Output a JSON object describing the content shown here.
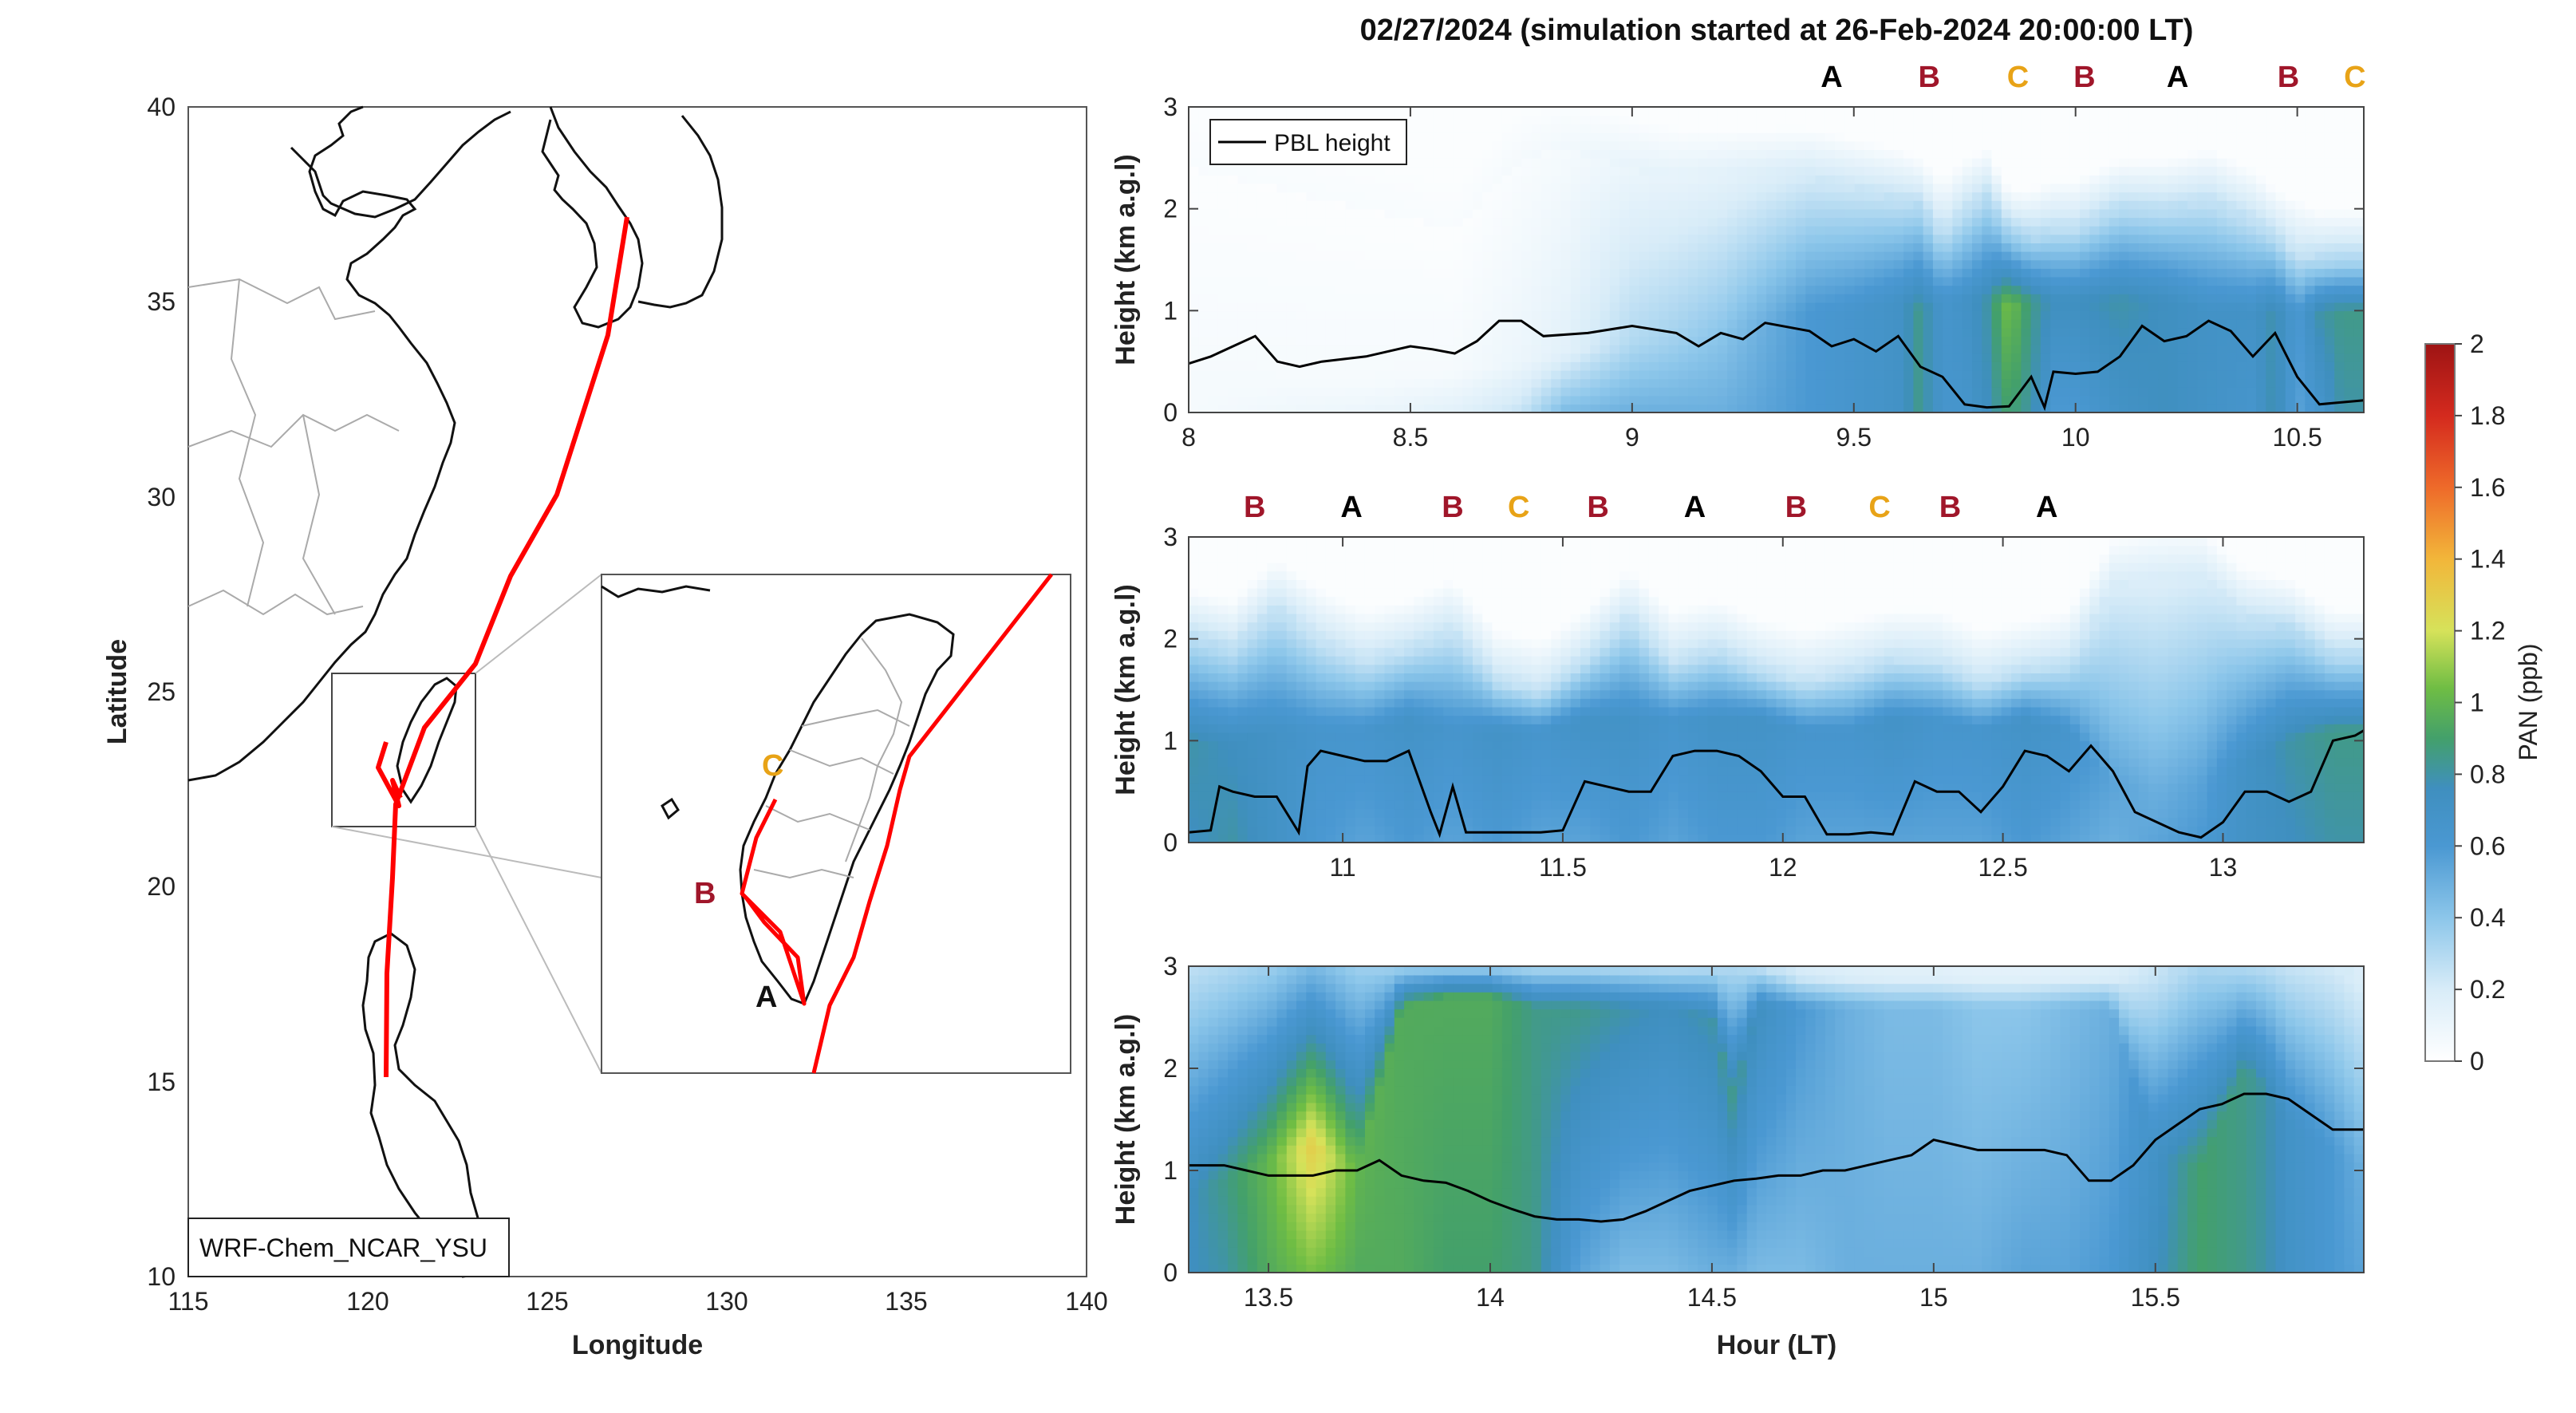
{
  "title": "02/27/2024 (simulation started at 26-Feb-2024 20:00:00 LT)",
  "map": {
    "model_label": "WRF-Chem_NCAR_YSU",
    "xlabel": "Longitude",
    "ylabel": "Latitude",
    "xticks": [
      "115",
      "120",
      "125",
      "130",
      "135",
      "140"
    ],
    "yticks": [
      "40",
      "35",
      "30",
      "25",
      "20",
      "15",
      "10"
    ],
    "inset_labels": [
      "C",
      "B",
      "A"
    ]
  },
  "colorbar": {
    "label": "PAN (ppb)",
    "ticks": [
      "2",
      "1.8",
      "1.6",
      "1.4",
      "1.2",
      "1",
      "0.8",
      "0.6",
      "0.4",
      "0.2",
      "0"
    ]
  },
  "colors": {
    "A": "#000000",
    "B": "#a0162a",
    "C": "#e8a317",
    "flight_track": "#ff0000",
    "pbl_line": "#000000"
  },
  "chart_data": [
    {
      "type": "heatmap",
      "panel": "top",
      "ylabel": "Height (km a.g.l)",
      "xlabel": "",
      "xlim": [
        8,
        10.65
      ],
      "ylim": [
        0,
        3
      ],
      "xticks": [
        "8",
        "8.5",
        "9",
        "9.5",
        "10",
        "10.5"
      ],
      "yticks": [
        "3",
        "2",
        "1",
        "0"
      ],
      "legend": "PBL height",
      "site_labels": [
        {
          "label": "A",
          "hour": 9.45
        },
        {
          "label": "B",
          "hour": 9.67
        },
        {
          "label": "C",
          "hour": 9.87
        },
        {
          "label": "B",
          "hour": 10.02
        },
        {
          "label": "A",
          "hour": 10.23
        },
        {
          "label": "B",
          "hour": 10.48
        },
        {
          "label": "C",
          "hour": 10.63
        }
      ],
      "pbl_height_km": {
        "hours": [
          8.0,
          8.05,
          8.1,
          8.15,
          8.2,
          8.25,
          8.3,
          8.4,
          8.5,
          8.55,
          8.6,
          8.65,
          8.7,
          8.75,
          8.8,
          8.9,
          9.0,
          9.1,
          9.15,
          9.2,
          9.25,
          9.3,
          9.4,
          9.45,
          9.5,
          9.55,
          9.6,
          9.65,
          9.7,
          9.75,
          9.8,
          9.85,
          9.9,
          9.93,
          9.95,
          10.0,
          10.05,
          10.1,
          10.15,
          10.2,
          10.25,
          10.3,
          10.35,
          10.4,
          10.45,
          10.5,
          10.55,
          10.6,
          10.65
        ],
        "values": [
          0.48,
          0.55,
          0.65,
          0.75,
          0.5,
          0.45,
          0.5,
          0.55,
          0.65,
          0.62,
          0.58,
          0.7,
          0.9,
          0.9,
          0.75,
          0.78,
          0.85,
          0.78,
          0.65,
          0.78,
          0.72,
          0.88,
          0.8,
          0.65,
          0.72,
          0.6,
          0.75,
          0.45,
          0.35,
          0.08,
          0.05,
          0.06,
          0.35,
          0.05,
          0.4,
          0.38,
          0.4,
          0.55,
          0.85,
          0.7,
          0.75,
          0.9,
          0.8,
          0.55,
          0.78,
          0.35,
          0.08,
          0.1,
          0.12
        ]
      },
      "pan_columns": {
        "hours": [
          8.0,
          8.2,
          8.4,
          8.6,
          8.75,
          8.85,
          9.0,
          9.1,
          9.2,
          9.3,
          9.4,
          9.5,
          9.6,
          9.65,
          9.7,
          9.75,
          9.8,
          9.85,
          9.9,
          9.95,
          10.0,
          10.1,
          10.2,
          10.3,
          10.4,
          10.45,
          10.5,
          10.55,
          10.6
        ],
        "surface_ppb": [
          0.05,
          0.08,
          0.1,
          0.15,
          0.25,
          0.45,
          0.5,
          0.5,
          0.5,
          0.55,
          0.6,
          0.65,
          0.7,
          0.85,
          0.65,
          0.65,
          0.75,
          0.9,
          0.8,
          0.6,
          0.6,
          0.7,
          0.75,
          0.7,
          0.65,
          0.8,
          0.55,
          0.65,
          0.8
        ],
        "layer_top_km": [
          2.4,
          2.2,
          2.0,
          1.8,
          2.5,
          2.6,
          2.4,
          2.3,
          2.3,
          2.3,
          2.3,
          2.2,
          2.1,
          2.0,
          1.8,
          2.0,
          2.1,
          1.7,
          1.7,
          1.8,
          1.8,
          2.0,
          2.0,
          2.1,
          1.9,
          1.7,
          1.6,
          1.5,
          1.5
        ],
        "peak_ppb": [
          0.05,
          0.05,
          0.05,
          0.05,
          0.1,
          0.15,
          0.3,
          0.35,
          0.4,
          0.5,
          0.6,
          0.65,
          0.7,
          0.85,
          0.65,
          0.7,
          0.8,
          1.05,
          0.85,
          0.75,
          0.75,
          0.8,
          0.75,
          0.7,
          0.7,
          0.8,
          0.6,
          0.8,
          0.85
        ],
        "peak_height_km": [
          0.3,
          0.3,
          0.3,
          0.4,
          0.5,
          0.6,
          0.7,
          0.7,
          0.8,
          0.9,
          1.0,
          1.0,
          1.1,
          1.0,
          1.1,
          1.1,
          1.1,
          1.05,
          1.1,
          1.1,
          1.1,
          1.1,
          1.1,
          1.0,
          1.0,
          1.0,
          1.0,
          1.0,
          1.0
        ]
      }
    },
    {
      "type": "heatmap",
      "panel": "middle",
      "ylabel": "Height (km a.g.l)",
      "xlabel": "",
      "xlim": [
        10.65,
        13.32
      ],
      "ylim": [
        0,
        3
      ],
      "xticks": [
        "11",
        "11.5",
        "12",
        "12.5",
        "13"
      ],
      "yticks": [
        "3",
        "2",
        "1",
        "0"
      ],
      "site_labels": [
        {
          "label": "B",
          "hour": 10.8
        },
        {
          "label": "A",
          "hour": 11.02
        },
        {
          "label": "B",
          "hour": 11.25
        },
        {
          "label": "C",
          "hour": 11.4
        },
        {
          "label": "B",
          "hour": 11.58
        },
        {
          "label": "A",
          "hour": 11.8
        },
        {
          "label": "B",
          "hour": 12.03
        },
        {
          "label": "C",
          "hour": 12.22
        },
        {
          "label": "B",
          "hour": 12.38
        },
        {
          "label": "A",
          "hour": 12.6
        }
      ],
      "pbl_height_km": {
        "hours": [
          10.65,
          10.7,
          10.72,
          10.75,
          10.8,
          10.85,
          10.9,
          10.92,
          10.95,
          11.0,
          11.05,
          11.1,
          11.15,
          11.2,
          11.22,
          11.25,
          11.28,
          11.3,
          11.35,
          11.45,
          11.5,
          11.55,
          11.6,
          11.65,
          11.7,
          11.75,
          11.8,
          11.85,
          11.9,
          11.95,
          12.0,
          12.05,
          12.1,
          12.15,
          12.2,
          12.25,
          12.3,
          12.35,
          12.4,
          12.45,
          12.5,
          12.55,
          12.6,
          12.65,
          12.7,
          12.75,
          12.8,
          12.85,
          12.9,
          12.95,
          13.0,
          13.05,
          13.1,
          13.15,
          13.2,
          13.25,
          13.3,
          13.32
        ],
        "values": [
          0.1,
          0.12,
          0.55,
          0.5,
          0.45,
          0.45,
          0.1,
          0.75,
          0.9,
          0.85,
          0.8,
          0.8,
          0.9,
          0.3,
          0.08,
          0.55,
          0.1,
          0.1,
          0.1,
          0.1,
          0.12,
          0.6,
          0.55,
          0.5,
          0.5,
          0.85,
          0.9,
          0.9,
          0.85,
          0.7,
          0.45,
          0.45,
          0.08,
          0.08,
          0.1,
          0.08,
          0.6,
          0.5,
          0.5,
          0.3,
          0.55,
          0.9,
          0.85,
          0.7,
          0.95,
          0.7,
          0.3,
          0.2,
          0.1,
          0.05,
          0.2,
          0.5,
          0.5,
          0.4,
          0.5,
          1.0,
          1.05,
          1.1
        ]
      },
      "pan_columns": {
        "hours": [
          10.65,
          10.75,
          10.85,
          10.95,
          11.05,
          11.15,
          11.25,
          11.35,
          11.45,
          11.55,
          11.65,
          11.75,
          11.85,
          11.95,
          12.05,
          12.15,
          12.25,
          12.35,
          12.45,
          12.55,
          12.65,
          12.75,
          12.85,
          12.95,
          13.05,
          13.15,
          13.25,
          13.32
        ],
        "surface_ppb": [
          0.75,
          0.8,
          0.7,
          0.6,
          0.55,
          0.6,
          0.55,
          0.6,
          0.55,
          0.55,
          0.6,
          0.55,
          0.6,
          0.6,
          0.55,
          0.55,
          0.55,
          0.55,
          0.55,
          0.6,
          0.55,
          0.5,
          0.55,
          0.6,
          0.7,
          0.75,
          0.8,
          0.8
        ],
        "layer_top_km": [
          2.0,
          1.9,
          2.3,
          2.0,
          1.8,
          1.9,
          2.1,
          1.6,
          1.5,
          1.8,
          2.2,
          1.8,
          1.9,
          1.7,
          1.6,
          1.7,
          1.8,
          1.8,
          1.6,
          1.7,
          1.8,
          2.5,
          2.6,
          2.6,
          2.2,
          2.1,
          1.8,
          1.8
        ],
        "peak_ppb": [
          0.8,
          0.75,
          0.7,
          0.65,
          0.65,
          0.7,
          0.65,
          0.7,
          0.65,
          0.7,
          0.7,
          0.65,
          0.7,
          0.7,
          0.65,
          0.65,
          0.7,
          0.65,
          0.65,
          0.7,
          0.65,
          0.55,
          0.5,
          0.55,
          0.7,
          0.8,
          0.85,
          0.85
        ],
        "peak_height_km": [
          1.0,
          1.0,
          1.1,
          1.1,
          1.1,
          1.2,
          1.1,
          1.1,
          1.1,
          1.2,
          1.2,
          1.2,
          1.2,
          1.2,
          1.1,
          1.1,
          1.2,
          1.2,
          1.1,
          1.2,
          1.1,
          0.6,
          0.5,
          0.6,
          0.8,
          1.0,
          1.1,
          1.1
        ]
      }
    },
    {
      "type": "heatmap",
      "panel": "bottom",
      "ylabel": "Height (km a.g.l)",
      "xlabel": "Hour (LT)",
      "xlim": [
        13.32,
        15.97
      ],
      "ylim": [
        0,
        3
      ],
      "xticks": [
        "13.5",
        "14",
        "14.5",
        "15",
        "15.5"
      ],
      "yticks": [
        "3",
        "2",
        "1",
        "0"
      ],
      "pbl_height_km": {
        "hours": [
          13.32,
          13.4,
          13.45,
          13.5,
          13.55,
          13.6,
          13.65,
          13.7,
          13.75,
          13.8,
          13.85,
          13.9,
          13.95,
          14.0,
          14.05,
          14.1,
          14.15,
          14.2,
          14.25,
          14.3,
          14.35,
          14.4,
          14.45,
          14.5,
          14.55,
          14.6,
          14.65,
          14.7,
          14.75,
          14.8,
          14.85,
          14.9,
          14.95,
          15.0,
          15.05,
          15.1,
          15.15,
          15.2,
          15.25,
          15.3,
          15.35,
          15.4,
          15.45,
          15.5,
          15.55,
          15.6,
          15.65,
          15.7,
          15.75,
          15.8,
          15.85,
          15.9,
          15.97
        ],
        "values": [
          1.05,
          1.05,
          1.0,
          0.95,
          0.95,
          0.95,
          1.0,
          1.0,
          1.1,
          0.95,
          0.9,
          0.88,
          0.8,
          0.7,
          0.62,
          0.55,
          0.52,
          0.52,
          0.5,
          0.52,
          0.6,
          0.7,
          0.8,
          0.85,
          0.9,
          0.92,
          0.95,
          0.95,
          1.0,
          1.0,
          1.05,
          1.1,
          1.15,
          1.3,
          1.25,
          1.2,
          1.2,
          1.2,
          1.2,
          1.15,
          0.9,
          0.9,
          1.05,
          1.3,
          1.45,
          1.6,
          1.65,
          1.75,
          1.75,
          1.7,
          1.55,
          1.4,
          1.4
        ]
      },
      "pan_columns": {
        "hours": [
          13.32,
          13.4,
          13.5,
          13.6,
          13.7,
          13.8,
          13.9,
          14.0,
          14.1,
          14.2,
          14.3,
          14.4,
          14.5,
          14.55,
          14.6,
          14.7,
          14.8,
          14.9,
          15.0,
          15.1,
          15.2,
          15.3,
          15.4,
          15.5,
          15.6,
          15.7,
          15.75,
          15.8,
          15.9,
          15.97
        ],
        "surface_ppb": [
          0.75,
          0.8,
          0.95,
          1.05,
          0.95,
          0.95,
          0.9,
          0.9,
          0.85,
          0.55,
          0.45,
          0.45,
          0.5,
          0.5,
          0.45,
          0.45,
          0.5,
          0.5,
          0.5,
          0.5,
          0.55,
          0.55,
          0.6,
          0.75,
          0.9,
          0.85,
          0.8,
          0.7,
          0.6,
          0.55
        ],
        "layer_top_km": [
          3.0,
          3.0,
          3.0,
          3.0,
          3.0,
          3.0,
          3.0,
          3.0,
          3.0,
          3.0,
          3.0,
          3.0,
          3.0,
          3.0,
          3.0,
          2.9,
          2.9,
          2.9,
          2.9,
          2.9,
          2.9,
          2.9,
          2.9,
          2.9,
          3.0,
          3.0,
          3.0,
          3.0,
          3.0,
          2.9
        ],
        "peak_ppb": [
          0.75,
          0.85,
          1.0,
          1.3,
          1.0,
          0.95,
          0.95,
          0.95,
          0.85,
          0.85,
          0.8,
          0.75,
          0.8,
          0.85,
          0.75,
          0.6,
          0.5,
          0.45,
          0.45,
          0.4,
          0.4,
          0.45,
          0.5,
          0.7,
          0.9,
          0.85,
          0.8,
          0.7,
          0.6,
          0.5
        ],
        "peak_height_km": [
          0.8,
          0.9,
          1.1,
          1.25,
          1.0,
          2.6,
          2.7,
          2.7,
          2.6,
          2.6,
          2.6,
          2.6,
          2.5,
          1.7,
          2.6,
          2.6,
          2.6,
          2.6,
          2.6,
          2.6,
          2.6,
          2.6,
          2.6,
          1.2,
          1.0,
          2.0,
          1.8,
          1.5,
          1.2,
          1.0
        ]
      }
    }
  ]
}
